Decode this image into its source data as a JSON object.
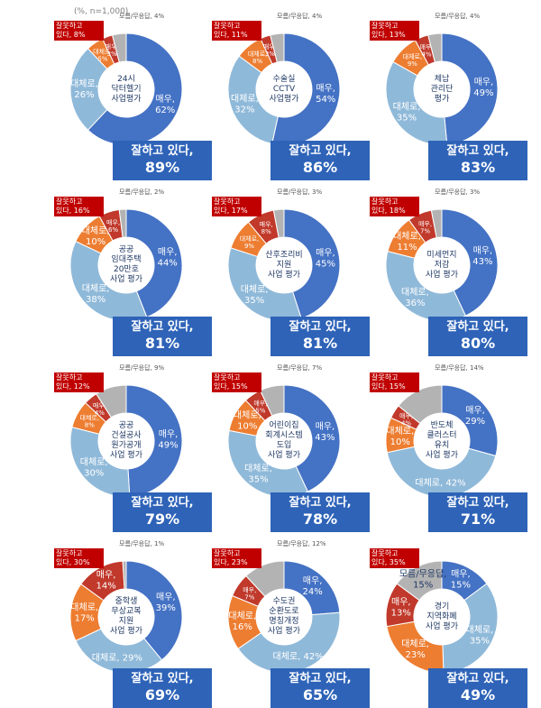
{
  "note": "(%, n=1,000)",
  "colors": {
    "very": "#4472c4",
    "rather": "#8fb9d9",
    "wrong_rather": "#ed7d31",
    "wrong_very": "#c0392b",
    "dk": "#b3b3b3",
    "good_box": "#2e63b8",
    "bad_box": "#c00000"
  },
  "chart_data": [
    {
      "type": "pie",
      "title": "24시\n닥터헬기\n사업평가",
      "wrong_label": "잘못하고\n있다, 8%",
      "dk_label": "모름/무응답, 4%",
      "good_label": "잘하고 있다,",
      "good_pct": "89%",
      "segments": [
        {
          "key": "very",
          "label": "매우,\n62%",
          "value": 62
        },
        {
          "key": "rather",
          "label": "대체로,\n26%",
          "value": 26
        },
        {
          "key": "wrong_rather",
          "label": "대체로,\n5%",
          "value": 5
        },
        {
          "key": "wrong_very",
          "label": "매우,\n3%",
          "value": 3
        },
        {
          "key": "dk",
          "label": "",
          "value": 4
        }
      ]
    },
    {
      "type": "pie",
      "title": "수술실\nCCTV\n사업평가",
      "wrong_label": "잘못하고\n있다, 11%",
      "dk_label": "모름/무응답, 4%",
      "good_label": "잘하고 있다,",
      "good_pct": "86%",
      "segments": [
        {
          "key": "very",
          "label": "매우,\n54%",
          "value": 54
        },
        {
          "key": "rather",
          "label": "대체로,\n32%",
          "value": 32
        },
        {
          "key": "wrong_rather",
          "label": "대체로,\n8%",
          "value": 8
        },
        {
          "key": "wrong_very",
          "label": "매우,\n3%",
          "value": 3
        },
        {
          "key": "dk",
          "label": "",
          "value": 4
        }
      ]
    },
    {
      "type": "pie",
      "title": "체납\n관리단\n평가",
      "wrong_label": "잘못하고\n있다, 13%",
      "dk_label": "모름/무응답, 4%",
      "good_label": "잘하고 있다,",
      "good_pct": "83%",
      "segments": [
        {
          "key": "very",
          "label": "매우,\n49%",
          "value": 49
        },
        {
          "key": "rather",
          "label": "대체로,\n35%",
          "value": 35
        },
        {
          "key": "wrong_rather",
          "label": "대체로,\n9%",
          "value": 9
        },
        {
          "key": "wrong_very",
          "label": "매우,\n4%",
          "value": 4
        },
        {
          "key": "dk",
          "label": "",
          "value": 4
        }
      ]
    },
    {
      "type": "pie",
      "title": "공공\n임대주택\n20만호\n사업 평가",
      "wrong_label": "잘못하고\n있다, 16%",
      "dk_label": "모름/무응답, 2%",
      "good_label": "잘하고 있다,",
      "good_pct": "81%",
      "segments": [
        {
          "key": "very",
          "label": "매우,\n44%",
          "value": 44
        },
        {
          "key": "rather",
          "label": "대체로,\n38%",
          "value": 38
        },
        {
          "key": "wrong_rather",
          "label": "대체로,\n10%",
          "value": 10
        },
        {
          "key": "wrong_very",
          "label": "매우,\n6%",
          "value": 6
        },
        {
          "key": "dk",
          "label": "",
          "value": 2
        }
      ]
    },
    {
      "type": "pie",
      "title": "산후조리비\n지원\n사업 평가",
      "wrong_label": "잘못하고\n있다, 17%",
      "dk_label": "모름/무응답, 3%",
      "good_label": "잘하고 있다,",
      "good_pct": "81%",
      "segments": [
        {
          "key": "very",
          "label": "매우,\n45%",
          "value": 45
        },
        {
          "key": "rather",
          "label": "대체로,\n35%",
          "value": 35
        },
        {
          "key": "wrong_rather",
          "label": "대체로,\n9%",
          "value": 9
        },
        {
          "key": "wrong_very",
          "label": "매우,\n8%",
          "value": 8
        },
        {
          "key": "dk",
          "label": "",
          "value": 3
        }
      ]
    },
    {
      "type": "pie",
      "title": "미세먼지\n저감\n사업 평가",
      "wrong_label": "잘못하고\n있다, 18%",
      "dk_label": "모름/무응답, 3%",
      "good_label": "잘하고 있다,",
      "good_pct": "80%",
      "segments": [
        {
          "key": "very",
          "label": "매우,\n43%",
          "value": 43
        },
        {
          "key": "rather",
          "label": "대체로,\n36%",
          "value": 36
        },
        {
          "key": "wrong_rather",
          "label": "대체로,\n11%",
          "value": 11
        },
        {
          "key": "wrong_very",
          "label": "매우,\n7%",
          "value": 7
        },
        {
          "key": "dk",
          "label": "",
          "value": 3
        }
      ]
    },
    {
      "type": "pie",
      "title": "공공\n건설공사\n원가공개\n사업 평가",
      "wrong_label": "잘못하고\n있다, 12%",
      "dk_label": "모름/무응답, 9%",
      "good_label": "잘하고 있다,",
      "good_pct": "79%",
      "segments": [
        {
          "key": "very",
          "label": "매우,\n49%",
          "value": 49
        },
        {
          "key": "rather",
          "label": "대체로,\n30%",
          "value": 30
        },
        {
          "key": "wrong_rather",
          "label": "대체로,\n8%",
          "value": 8
        },
        {
          "key": "wrong_very",
          "label": "매우,\n4%",
          "value": 4
        },
        {
          "key": "dk",
          "label": "",
          "value": 9
        }
      ]
    },
    {
      "type": "pie",
      "title": "어린이집\n회계시스템\n도입\n사업 평가",
      "wrong_label": "잘못하고\n있다, 15%",
      "dk_label": "모름/무응답, 7%",
      "good_label": "잘하고 있다,",
      "good_pct": "78%",
      "segments": [
        {
          "key": "very",
          "label": "매우,\n43%",
          "value": 43
        },
        {
          "key": "rather",
          "label": "대체로,\n35%",
          "value": 35
        },
        {
          "key": "wrong_rather",
          "label": "대체로,\n10%",
          "value": 10
        },
        {
          "key": "wrong_very",
          "label": "매우,\n5%",
          "value": 5
        },
        {
          "key": "dk",
          "label": "",
          "value": 7
        }
      ]
    },
    {
      "type": "pie",
      "title": "반도체\n클러스터\n유치\n사업 평가",
      "wrong_label": "잘못하고\n있다, 15%",
      "dk_label": "모름/무응답, 14%",
      "good_label": "잘하고 있다,",
      "good_pct": "71%",
      "segments": [
        {
          "key": "very",
          "label": "매우,\n29%",
          "value": 29
        },
        {
          "key": "rather",
          "label": "대체로, 42%",
          "value": 42
        },
        {
          "key": "wrong_rather",
          "label": "대체로,\n10%",
          "value": 10
        },
        {
          "key": "wrong_very",
          "label": "매우,\n4%",
          "value": 4
        },
        {
          "key": "dk",
          "label": "",
          "value": 14
        }
      ]
    },
    {
      "type": "pie",
      "title": "중학생\n무상교복\n지원\n사업 평가",
      "wrong_label": "잘못하고\n있다, 30%",
      "dk_label": "모름/무응답, 1%",
      "good_label": "잘하고 있다,",
      "good_pct": "69%",
      "segments": [
        {
          "key": "very",
          "label": "매우,\n39%",
          "value": 39
        },
        {
          "key": "rather",
          "label": "대체로, 29%",
          "value": 29
        },
        {
          "key": "wrong_rather",
          "label": "대체로,\n17%",
          "value": 17
        },
        {
          "key": "wrong_very",
          "label": "매우,\n14%",
          "value": 14
        },
        {
          "key": "dk",
          "label": "",
          "value": 1
        }
      ]
    },
    {
      "type": "pie",
      "title": "수도권\n순환도로\n명칭개정\n사업 평가",
      "wrong_label": "잘못하고\n있다, 23%",
      "dk_label": "모름/무응답, 12%",
      "good_label": "잘하고 있다,",
      "good_pct": "65%",
      "segments": [
        {
          "key": "very",
          "label": "매우,\n24%",
          "value": 24
        },
        {
          "key": "rather",
          "label": "대체로, 42%",
          "value": 42
        },
        {
          "key": "wrong_rather",
          "label": "대체로,\n16%",
          "value": 16
        },
        {
          "key": "wrong_very",
          "label": "매우,\n7%",
          "value": 7
        },
        {
          "key": "dk",
          "label": "",
          "value": 12
        }
      ]
    },
    {
      "type": "pie",
      "title": "경기\n지역화폐\n사업 평가",
      "wrong_label": "잘못하고\n있다, 35%",
      "dk_label": "",
      "good_label": "잘하고 있다,",
      "good_pct": "49%",
      "segments": [
        {
          "key": "very",
          "label": "매우,\n15%",
          "value": 15
        },
        {
          "key": "rather",
          "label": "대체로,\n35%",
          "value": 35
        },
        {
          "key": "wrong_rather",
          "label": "대체로,\n23%",
          "value": 23
        },
        {
          "key": "wrong_very",
          "label": "매우,\n13%",
          "value": 13
        },
        {
          "key": "dk",
          "label": "모름/무응답,\n15%",
          "value": 15
        }
      ]
    }
  ]
}
